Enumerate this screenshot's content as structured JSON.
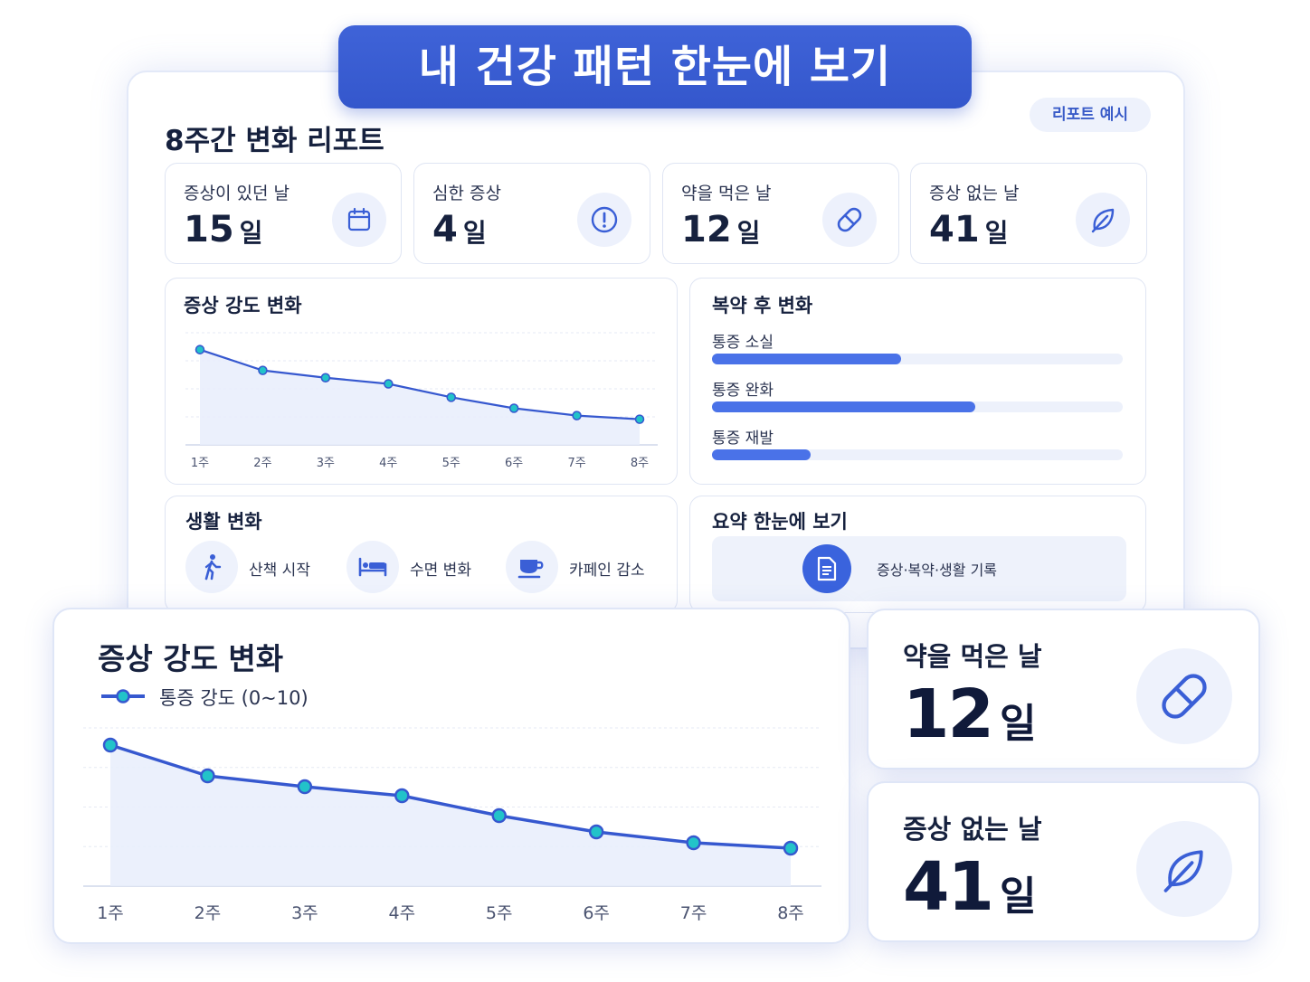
{
  "banner": {
    "title": "내 건강 패턴 한눈에 보기"
  },
  "report": {
    "title": "8주간 변화 리포트",
    "badge": "리포트 예시",
    "stats": [
      {
        "label": "증상이 있던 날",
        "value": "15",
        "unit": "일",
        "icon": "calendar-icon"
      },
      {
        "label": "심한 증상",
        "value": "4",
        "unit": "일",
        "icon": "alert-circle-icon"
      },
      {
        "label": "약을 먹은 날",
        "value": "12",
        "unit": "일",
        "icon": "pill-icon"
      },
      {
        "label": "증상 없는 날",
        "value": "41",
        "unit": "일",
        "icon": "leaf-icon"
      }
    ],
    "intensity_title": "증상 강도 변화",
    "medication": {
      "title": "복약 후 변화",
      "items": [
        {
          "label": "통증 소실",
          "level": 0.46
        },
        {
          "label": "통증 완화",
          "level": 0.64
        },
        {
          "label": "통증 재발",
          "level": 0.24
        }
      ]
    },
    "lifestyle": {
      "title": "생활 변화",
      "items": [
        {
          "label": "산책 시작",
          "icon": "walking-icon"
        },
        {
          "label": "수면 변화",
          "icon": "bed-icon"
        },
        {
          "label": "카페인 감소",
          "icon": "coffee-cup-icon"
        }
      ]
    },
    "summary": {
      "title": "요약 한눈에 보기",
      "text": "증상·복약·생활 기록",
      "icon": "document-icon"
    }
  },
  "detail": {
    "title": "증상 강도 변화",
    "legend": "통증 강도 (0~10)",
    "med_card": {
      "label": "약을 먹은 날",
      "value": "12",
      "unit": "일",
      "icon": "pill-icon"
    },
    "free_card": {
      "label": "증상 없는 날",
      "value": "41",
      "unit": "일",
      "icon": "leaf-icon"
    }
  },
  "colors": {
    "accent": "#3a5fd6",
    "line": "#3658cf",
    "marker": "#22c3c9",
    "bar": "#4a72e8"
  },
  "chart_data": [
    {
      "type": "line",
      "title": "증상 강도 변화",
      "categories": [
        "1주",
        "2주",
        "3주",
        "4주",
        "5주",
        "6주",
        "7주",
        "8주"
      ],
      "series": [
        {
          "values": [
            7.8,
            6.1,
            5.5,
            5.0,
            3.9,
            3.0,
            2.4,
            2.1
          ]
        }
      ],
      "ylim": [
        0,
        10
      ],
      "grid": true
    },
    {
      "type": "line",
      "title": "증상 강도 변화",
      "categories": [
        "1주",
        "2주",
        "3주",
        "4주",
        "5주",
        "6주",
        "7주",
        "8주"
      ],
      "series": [
        {
          "name": "통증 강도 (0~10)",
          "values": [
            7.8,
            6.1,
            5.5,
            5.0,
            3.9,
            3.0,
            2.4,
            2.1
          ]
        }
      ],
      "ylim": [
        0,
        10
      ],
      "grid": true,
      "legend": "top-left"
    }
  ]
}
